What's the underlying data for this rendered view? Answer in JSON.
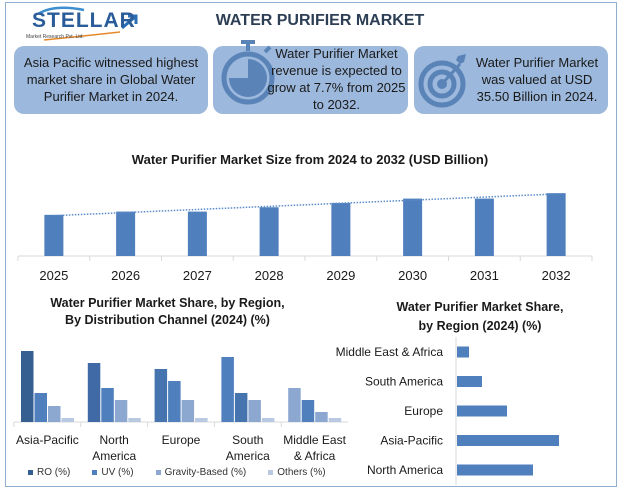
{
  "header": {
    "logo_text": "STELLAR",
    "logo_subtitle": "Market Research Pvt. Ltd.",
    "title": "WATER PURIFIER MARKET"
  },
  "cards": [
    {
      "text": "Asia Pacific witnessed highest market share in Global Water Purifier Market in 2024.",
      "icon": "none"
    },
    {
      "text": "Water Purifier Market revenue is expected to grow at 7.7% from 2025 to 2032.",
      "icon": "stopwatch-icon"
    },
    {
      "text": "Water Purifier Market was valued at USD 35.50 Billion in 2024.",
      "icon": "target-icon"
    }
  ],
  "colors": {
    "card_bg": "#9cb8dc",
    "bar": "#4f7fbd",
    "icon": "#5a83b8",
    "series": [
      "#365f91",
      "#4f7fbd",
      "#8da8d0",
      "#b9c9e2"
    ]
  },
  "chart_data": [
    {
      "type": "bar",
      "title": "Water Purifier Market Size from 2024 to 2032 (USD Billion)",
      "categories": [
        "2025",
        "2026",
        "2027",
        "2028",
        "2029",
        "2030",
        "2031",
        "2032"
      ],
      "values": [
        38,
        41,
        41,
        45,
        49,
        53,
        53,
        58
      ],
      "trendline": "linear dotted",
      "xlabel": "",
      "ylabel": "",
      "ylim": [
        0,
        60
      ],
      "grid": false
    },
    {
      "type": "bar",
      "title_line1": "Water Purifier Market Share, by Region,",
      "title_line2": "By Distribution Channel (2024) (%)",
      "categories": [
        [
          "Asia-Pacific"
        ],
        [
          "North",
          "America"
        ],
        [
          "Europe"
        ],
        [
          "South",
          "America"
        ],
        [
          "Middle East",
          "& Africa"
        ]
      ],
      "series": [
        {
          "name": "RO (%)",
          "values": [
            71,
            59,
            53,
            65,
            34
          ]
        },
        {
          "name": "UV (%)",
          "values": [
            29,
            34,
            41,
            29,
            22
          ]
        },
        {
          "name": "Gravity-Based (%)",
          "values": [
            16,
            22,
            22,
            22,
            10
          ]
        },
        {
          "name": "Others (%)",
          "values": [
            4,
            4,
            4,
            4,
            4
          ]
        }
      ],
      "ylim": [
        0,
        75
      ],
      "legend": "bottom",
      "grid": false
    },
    {
      "type": "bar",
      "orientation": "horizontal",
      "title_line1": "Water Purifier Market Share,",
      "title_line2": "by Region (2024) (%)",
      "categories": [
        "Middle East & Africa",
        "South America",
        "Europe",
        "Asia-Pacific",
        "North America"
      ],
      "values": [
        12,
        25,
        50,
        102,
        76
      ],
      "xlim": [
        0,
        110
      ],
      "grid": false
    }
  ]
}
